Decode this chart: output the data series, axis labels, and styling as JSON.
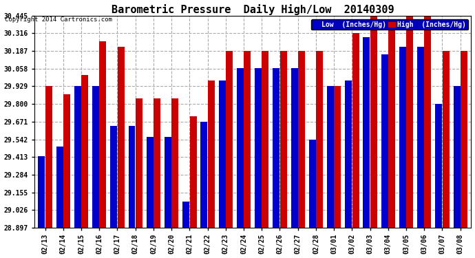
{
  "title": "Barometric Pressure  Daily High/Low  20140309",
  "copyright": "Copyright 2014 Cartronics.com",
  "legend_low": "Low  (Inches/Hg)",
  "legend_high": "High  (Inches/Hg)",
  "dates": [
    "02/13",
    "02/14",
    "02/15",
    "02/16",
    "02/17",
    "02/18",
    "02/19",
    "02/20",
    "02/21",
    "02/22",
    "02/23",
    "02/24",
    "02/25",
    "02/26",
    "02/27",
    "02/28",
    "03/01",
    "03/02",
    "03/03",
    "03/04",
    "03/05",
    "03/06",
    "03/07",
    "03/08"
  ],
  "low_values": [
    29.42,
    29.49,
    29.93,
    29.93,
    29.64,
    29.64,
    29.56,
    29.56,
    29.09,
    29.67,
    29.97,
    30.06,
    30.06,
    30.06,
    30.06,
    29.54,
    29.93,
    29.97,
    30.29,
    30.16,
    30.22,
    30.22,
    29.8,
    29.93
  ],
  "high_values": [
    29.93,
    29.87,
    30.01,
    30.26,
    30.22,
    29.84,
    29.84,
    29.84,
    29.71,
    29.97,
    30.19,
    30.19,
    30.19,
    30.19,
    30.19,
    30.19,
    29.93,
    30.32,
    30.44,
    30.35,
    30.44,
    30.44,
    30.19,
    30.19
  ],
  "ymin": 28.897,
  "ymax": 30.445,
  "yticks": [
    28.897,
    29.026,
    29.155,
    29.284,
    29.413,
    29.542,
    29.671,
    29.8,
    29.929,
    30.058,
    30.187,
    30.316,
    30.445
  ],
  "bar_color_low": "#0000cc",
  "bar_color_high": "#cc0000",
  "background_color": "#ffffff",
  "grid_color": "#aaaaaa",
  "title_fontsize": 11,
  "copyright_fontsize": 6.5,
  "tick_fontsize": 7,
  "legend_fontsize": 7,
  "bar_width": 0.38,
  "bar_gap": 0.015,
  "figwidth": 6.9,
  "figheight": 3.75,
  "dpi": 100
}
